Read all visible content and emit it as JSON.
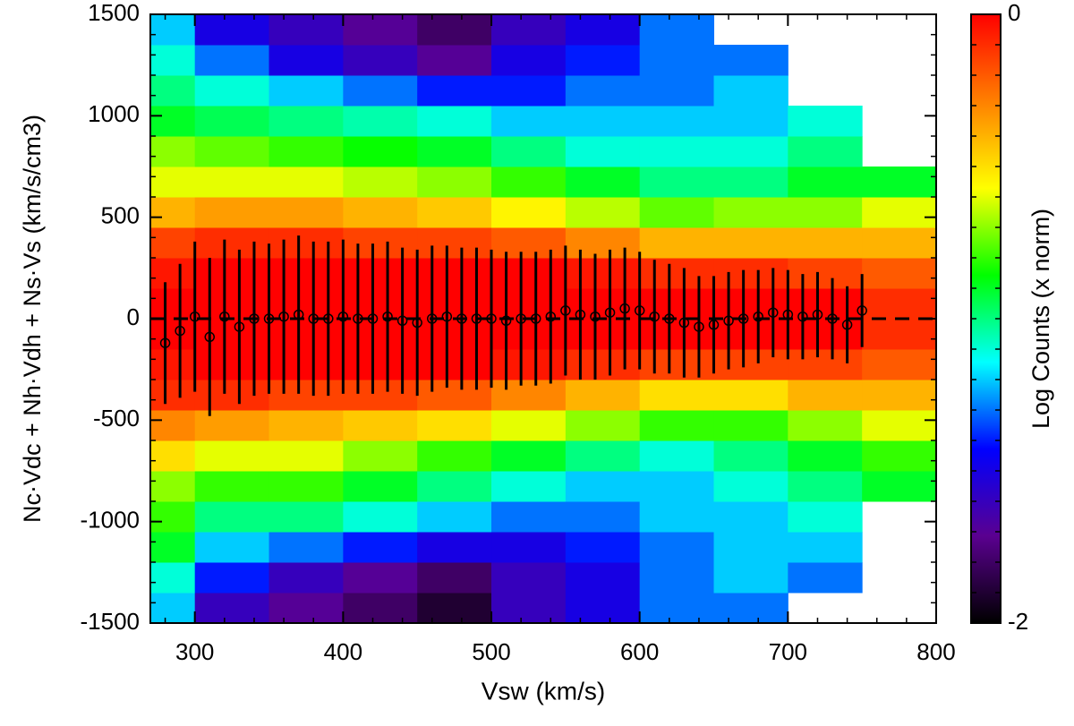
{
  "chart_data": {
    "type": "heatmap",
    "xlabel": "Vsw (km/s)",
    "ylabel": "Nc·Vdc + Nh·Vdh + Ns·Vs (km/s/cm3)",
    "xlim": [
      270,
      800
    ],
    "ylim": [
      -1500,
      1500
    ],
    "xticks": [
      300,
      400,
      500,
      600,
      700,
      800
    ],
    "yticks": [
      -1500,
      -1000,
      -500,
      0,
      500,
      1000,
      1500
    ],
    "hline": 0,
    "x_bins": [
      270,
      300,
      350,
      400,
      450,
      500,
      550,
      600,
      650,
      700,
      750,
      800
    ],
    "y_bins": [
      -1500,
      -1350,
      -1200,
      -1050,
      -900,
      -750,
      -600,
      -450,
      -300,
      -150,
      0,
      150,
      300,
      450,
      600,
      750,
      900,
      1050,
      1200,
      1350,
      1500
    ],
    "z": [
      [
        -1.2,
        -1.6,
        -1.7,
        -1.8,
        -1.9,
        -1.6,
        -1.5,
        -1.3,
        -1.3,
        null,
        null
      ],
      [
        -1.1,
        -1.4,
        -1.6,
        -1.7,
        -1.8,
        -1.6,
        -1.5,
        -1.3,
        -1.2,
        -1.3,
        null
      ],
      [
        -0.9,
        -1.2,
        -1.3,
        -1.4,
        -1.5,
        -1.5,
        -1.4,
        -1.3,
        -1.2,
        -1.2,
        null
      ],
      [
        -0.8,
        -1.0,
        -1.0,
        -1.1,
        -1.2,
        -1.3,
        -1.3,
        -1.2,
        -1.2,
        -1.1,
        null
      ],
      [
        -0.7,
        -0.8,
        -0.8,
        -0.9,
        -1.0,
        -1.1,
        -1.2,
        -1.2,
        -1.1,
        -1.0,
        -0.9
      ],
      [
        -0.5,
        -0.6,
        -0.6,
        -0.7,
        -0.8,
        -0.9,
        -1.0,
        -1.1,
        -1.0,
        -0.9,
        -0.8
      ],
      [
        -0.3,
        -0.35,
        -0.4,
        -0.45,
        -0.5,
        -0.6,
        -0.7,
        -0.8,
        -0.8,
        -0.7,
        -0.6
      ],
      [
        -0.1,
        -0.1,
        -0.15,
        -0.15,
        -0.2,
        -0.3,
        -0.4,
        -0.5,
        -0.5,
        -0.4,
        -0.4
      ],
      [
        -0.05,
        0,
        0,
        0,
        0,
        -0.05,
        -0.1,
        -0.15,
        -0.15,
        -0.15,
        -0.2
      ],
      [
        0,
        0,
        0,
        0,
        0,
        0,
        0,
        0,
        0,
        0,
        -0.1
      ],
      [
        0,
        0,
        0,
        0,
        0,
        0,
        0,
        0,
        0,
        0,
        -0.1
      ],
      [
        -0.05,
        0,
        0,
        0,
        0,
        0,
        -0.05,
        -0.1,
        -0.1,
        -0.15,
        -0.2
      ],
      [
        -0.15,
        -0.1,
        -0.1,
        -0.15,
        -0.15,
        -0.2,
        -0.3,
        -0.4,
        -0.4,
        -0.4,
        -0.4
      ],
      [
        -0.4,
        -0.35,
        -0.35,
        -0.4,
        -0.45,
        -0.55,
        -0.65,
        -0.75,
        -0.7,
        -0.7,
        -0.6
      ],
      [
        -0.6,
        -0.6,
        -0.6,
        -0.65,
        -0.7,
        -0.8,
        -0.9,
        -1.0,
        -1.0,
        -0.9,
        -0.9
      ],
      [
        -0.7,
        -0.75,
        -0.8,
        -0.85,
        -0.9,
        -1.0,
        -1.1,
        -1.1,
        -1.1,
        -1.0,
        null
      ],
      [
        -0.9,
        -0.95,
        -1.0,
        -1.05,
        -1.1,
        -1.2,
        -1.2,
        -1.2,
        -1.2,
        -1.1,
        null
      ],
      [
        -1.0,
        -1.1,
        -1.2,
        -1.3,
        -1.4,
        -1.4,
        -1.3,
        -1.3,
        -1.2,
        null,
        null
      ],
      [
        -1.1,
        -1.3,
        -1.5,
        -1.6,
        -1.7,
        -1.5,
        -1.4,
        -1.3,
        -1.3,
        null,
        null
      ],
      [
        -1.2,
        -1.5,
        -1.6,
        -1.7,
        -1.8,
        -1.6,
        -1.5,
        -1.3,
        null,
        null,
        null
      ]
    ],
    "colorbar": {
      "label": "Log Counts (x norm)",
      "range": [
        -2,
        0
      ],
      "ticks": [
        -2,
        0
      ],
      "colors": [
        "#000000",
        "#5a0090",
        "#0000ff",
        "#00ffff",
        "#00ff00",
        "#ffff00",
        "#ff8000",
        "#ff0000"
      ]
    },
    "means": {
      "color": "#000000",
      "x": [
        280,
        290,
        300,
        310,
        320,
        330,
        340,
        350,
        360,
        370,
        380,
        390,
        400,
        410,
        420,
        430,
        440,
        450,
        460,
        470,
        480,
        490,
        500,
        510,
        520,
        530,
        540,
        550,
        560,
        570,
        580,
        590,
        600,
        610,
        620,
        630,
        640,
        650,
        660,
        670,
        680,
        690,
        700,
        710,
        720,
        730,
        740,
        750
      ],
      "values": [
        -120,
        -60,
        10,
        -90,
        10,
        -40,
        0,
        0,
        10,
        20,
        0,
        0,
        10,
        0,
        0,
        10,
        -10,
        -20,
        0,
        10,
        0,
        0,
        0,
        -10,
        0,
        0,
        10,
        40,
        20,
        10,
        30,
        50,
        40,
        10,
        0,
        -20,
        -40,
        -30,
        -10,
        0,
        10,
        30,
        20,
        10,
        20,
        0,
        -30,
        40
      ],
      "errors": [
        300,
        330,
        370,
        390,
        380,
        380,
        380,
        370,
        380,
        390,
        380,
        380,
        380,
        370,
        370,
        370,
        360,
        360,
        360,
        350,
        350,
        350,
        340,
        340,
        330,
        330,
        330,
        320,
        320,
        310,
        310,
        300,
        290,
        280,
        270,
        270,
        250,
        240,
        240,
        240,
        230,
        220,
        220,
        210,
        210,
        200,
        190,
        180
      ]
    }
  }
}
